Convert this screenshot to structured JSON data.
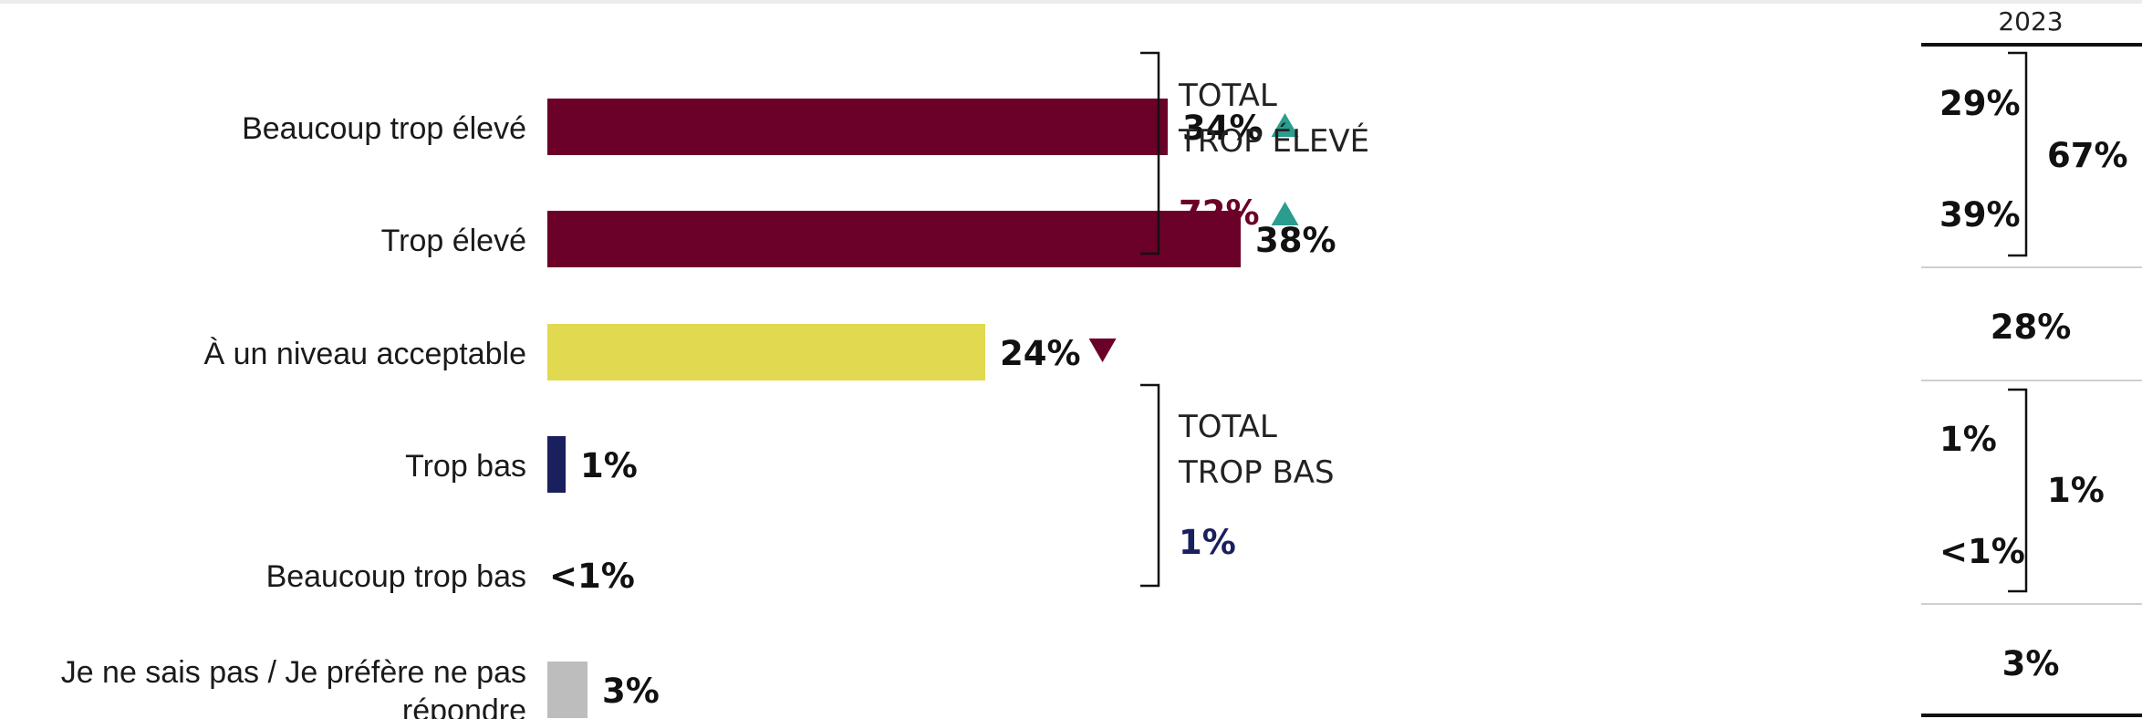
{
  "chart_data": {
    "type": "bar",
    "orientation": "horizontal",
    "categories": [
      "Beaucoup trop élevé",
      "Trop élevé",
      "À un niveau acceptable",
      "Trop bas",
      "Beaucoup trop bas",
      "Je ne sais pas / Je préfère ne pas répondre"
    ],
    "category_lines": [
      [
        "Beaucoup trop élevé"
      ],
      [
        "Trop élevé"
      ],
      [
        "À un niveau acceptable"
      ],
      [
        "Trop bas"
      ],
      [
        "Beaucoup trop bas"
      ],
      [
        "Je ne sais pas / Je préfère ne pas",
        "répondre"
      ]
    ],
    "values": [
      34,
      38,
      24,
      1,
      0.4,
      3
    ],
    "value_labels": [
      "34%",
      "38%",
      "24%",
      "1%",
      "<1%",
      "3%"
    ],
    "bar_colors": [
      "#6b0029",
      "#6b0029",
      "#e1d94f",
      "#1a1f5e",
      "#1a1f5e",
      "#bdbdbd"
    ],
    "change_markers": [
      "up",
      "",
      "down",
      "",
      "",
      ""
    ],
    "marker_colors": {
      "up": "#2a9d8f",
      "down": "#6b0029"
    },
    "xlim": [
      0,
      40
    ],
    "groups": [
      {
        "label_lines": [
          "TOTAL",
          "TROP ÉLEVÉ"
        ],
        "value": "72%",
        "value_color": "#6b0029",
        "marker": "up"
      },
      {
        "label_lines": [
          "TOTAL",
          "TROP BAS"
        ],
        "value": "1%",
        "value_color": "#1a1f5e",
        "marker": ""
      }
    ],
    "comparison": {
      "year": "2023",
      "values": [
        "29%",
        "39%",
        "28%",
        "1%",
        "<1%",
        "3%"
      ],
      "group_totals": [
        {
          "value": "67%",
          "color": "#6b0029"
        },
        {
          "value": "1%",
          "color": "#1a1f5e"
        }
      ]
    }
  }
}
